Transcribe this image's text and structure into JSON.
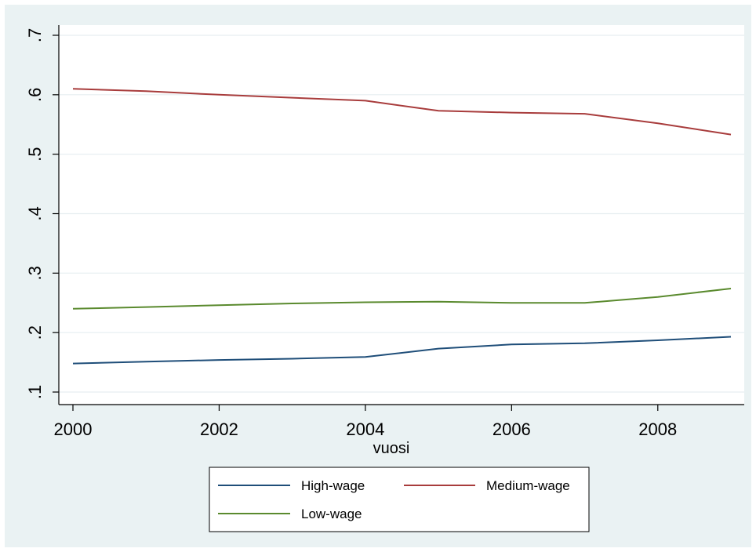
{
  "chart_data": {
    "type": "line",
    "title": "",
    "xlabel": "vuosi",
    "ylabel": "",
    "x": [
      2000,
      2001,
      2002,
      2003,
      2004,
      2005,
      2006,
      2007,
      2008,
      2009
    ],
    "series": [
      {
        "name": "High-wage",
        "color": "#1f4e79",
        "values": [
          0.148,
          0.151,
          0.154,
          0.156,
          0.159,
          0.173,
          0.18,
          0.182,
          0.187,
          0.193
        ]
      },
      {
        "name": "Medium-wage",
        "color": "#a83c3c",
        "values": [
          0.61,
          0.606,
          0.6,
          0.595,
          0.59,
          0.573,
          0.57,
          0.568,
          0.552,
          0.533
        ]
      },
      {
        "name": "Low-wage",
        "color": "#5a8a2e",
        "values": [
          0.24,
          0.243,
          0.246,
          0.249,
          0.251,
          0.252,
          0.25,
          0.25,
          0.26,
          0.274
        ]
      }
    ],
    "xlim": [
      2000,
      2009
    ],
    "ylim": [
      0.1,
      0.7
    ],
    "xticks": [
      2000,
      2002,
      2004,
      2006,
      2008
    ],
    "yticks": [
      0.1,
      0.2,
      0.3,
      0.4,
      0.5,
      0.6,
      0.7
    ],
    "ytick_labels": [
      ".1",
      ".2",
      ".3",
      ".4",
      ".5",
      ".6",
      ".7"
    ],
    "grid": true,
    "legend_position": "bottom"
  }
}
